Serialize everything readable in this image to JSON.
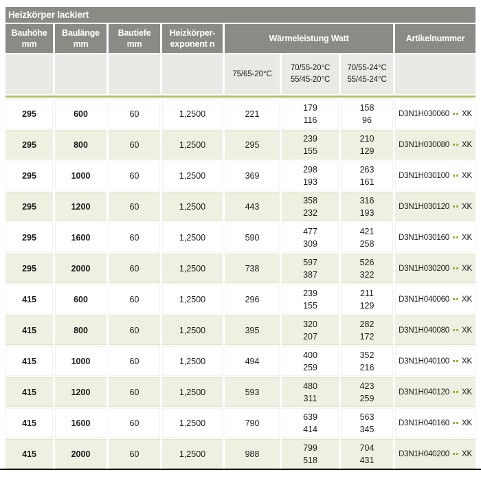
{
  "title": "Heizkörper lackiert",
  "colors": {
    "header_gray": "#8b8b86",
    "subheader_gray": "#e9e9e6",
    "row_green": "#eef1e1",
    "accent_green": "#a9c566",
    "dot_green": "#8bb839",
    "text": "#1b1b19",
    "border_black": "#000000"
  },
  "header": {
    "cols": [
      {
        "lines": [
          "Bauhöhe",
          "mm"
        ]
      },
      {
        "lines": [
          "Baulänge",
          "mm"
        ]
      },
      {
        "lines": [
          "Bautiefe",
          "mm"
        ]
      },
      {
        "lines": [
          "Heizkörper-",
          "exponent n"
        ]
      },
      {
        "lines": [
          "Wärmeleistung Watt"
        ]
      },
      {
        "lines": [
          "Artikelnummer"
        ]
      }
    ],
    "subcols": [
      {
        "lines": [
          "75/65-20°C"
        ]
      },
      {
        "lines": [
          "70/55-20°C",
          "55/45-20°C"
        ]
      },
      {
        "lines": [
          "70/55-24°C",
          "55/45-24°C"
        ]
      }
    ]
  },
  "artikel_suffix": "XK",
  "rows": [
    {
      "bauhoehe": "295",
      "baulaenge": "600",
      "bautiefe": "60",
      "exponent": "1,2500",
      "watt_75_65": "221",
      "watt_70_55_20": [
        "179",
        "116"
      ],
      "watt_70_55_24": [
        "158",
        "96"
      ],
      "artikel": "D3N1H030060"
    },
    {
      "bauhoehe": "295",
      "baulaenge": "800",
      "bautiefe": "60",
      "exponent": "1,2500",
      "watt_75_65": "295",
      "watt_70_55_20": [
        "239",
        "155"
      ],
      "watt_70_55_24": [
        "210",
        "129"
      ],
      "artikel": "D3N1H030080"
    },
    {
      "bauhoehe": "295",
      "baulaenge": "1000",
      "bautiefe": "60",
      "exponent": "1,2500",
      "watt_75_65": "369",
      "watt_70_55_20": [
        "298",
        "193"
      ],
      "watt_70_55_24": [
        "263",
        "161"
      ],
      "artikel": "D3N1H030100"
    },
    {
      "bauhoehe": "295",
      "baulaenge": "1200",
      "bautiefe": "60",
      "exponent": "1,2500",
      "watt_75_65": "443",
      "watt_70_55_20": [
        "358",
        "232"
      ],
      "watt_70_55_24": [
        "316",
        "193"
      ],
      "artikel": "D3N1H030120"
    },
    {
      "bauhoehe": "295",
      "baulaenge": "1600",
      "bautiefe": "60",
      "exponent": "1,2500",
      "watt_75_65": "590",
      "watt_70_55_20": [
        "477",
        "309"
      ],
      "watt_70_55_24": [
        "421",
        "258"
      ],
      "artikel": "D3N1H030160"
    },
    {
      "bauhoehe": "295",
      "baulaenge": "2000",
      "bautiefe": "60",
      "exponent": "1,2500",
      "watt_75_65": "738",
      "watt_70_55_20": [
        "597",
        "387"
      ],
      "watt_70_55_24": [
        "526",
        "322"
      ],
      "artikel": "D3N1H030200"
    },
    {
      "bauhoehe": "415",
      "baulaenge": "600",
      "bautiefe": "60",
      "exponent": "1,2500",
      "watt_75_65": "296",
      "watt_70_55_20": [
        "239",
        "155"
      ],
      "watt_70_55_24": [
        "211",
        "129"
      ],
      "artikel": "D3N1H040060"
    },
    {
      "bauhoehe": "415",
      "baulaenge": "800",
      "bautiefe": "60",
      "exponent": "1,2500",
      "watt_75_65": "395",
      "watt_70_55_20": [
        "320",
        "207"
      ],
      "watt_70_55_24": [
        "282",
        "172"
      ],
      "artikel": "D3N1H040080"
    },
    {
      "bauhoehe": "415",
      "baulaenge": "1000",
      "bautiefe": "60",
      "exponent": "1,2500",
      "watt_75_65": "494",
      "watt_70_55_20": [
        "400",
        "259"
      ],
      "watt_70_55_24": [
        "352",
        "216"
      ],
      "artikel": "D3N1H040100"
    },
    {
      "bauhoehe": "415",
      "baulaenge": "1200",
      "bautiefe": "60",
      "exponent": "1,2500",
      "watt_75_65": "593",
      "watt_70_55_20": [
        "480",
        "311"
      ],
      "watt_70_55_24": [
        "423",
        "259"
      ],
      "artikel": "D3N1H040120"
    },
    {
      "bauhoehe": "415",
      "baulaenge": "1600",
      "bautiefe": "60",
      "exponent": "1,2500",
      "watt_75_65": "790",
      "watt_70_55_20": [
        "639",
        "414"
      ],
      "watt_70_55_24": [
        "563",
        "345"
      ],
      "artikel": "D3N1H040160"
    },
    {
      "bauhoehe": "415",
      "baulaenge": "2000",
      "bautiefe": "60",
      "exponent": "1,2500",
      "watt_75_65": "988",
      "watt_70_55_20": [
        "799",
        "518"
      ],
      "watt_70_55_24": [
        "704",
        "431"
      ],
      "artikel": "D3N1H040200"
    }
  ]
}
